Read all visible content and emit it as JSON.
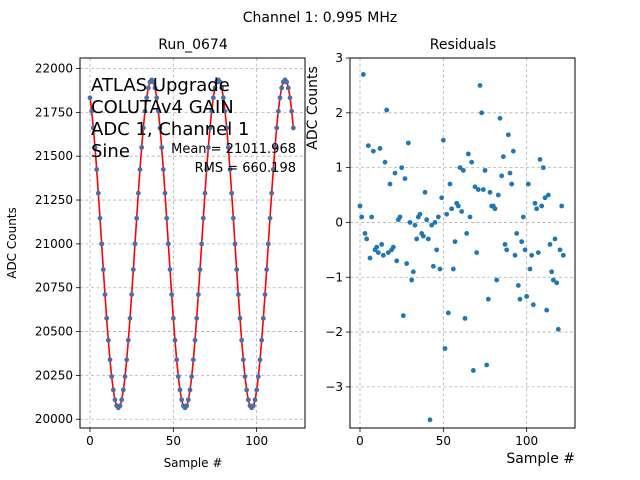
{
  "suptitle": "Channel 1: 0.995 MHz",
  "chart_data": [
    {
      "type": "scatter",
      "title": "Run_0674",
      "xlabel": "Sample #",
      "ylabel": "ADC Counts",
      "xlim": [
        -6,
        129
      ],
      "ylim": [
        19950,
        22060
      ],
      "xticks": [
        0,
        50,
        100
      ],
      "yticks": [
        20000,
        20250,
        20500,
        20750,
        21000,
        21250,
        21500,
        21750,
        22000
      ],
      "grid": true,
      "annotation_lines": [
        "ATLAS Upgrade",
        "COLUTAv4 GAIN",
        "ADC 1, Channel 1",
        "Sine"
      ],
      "stats": [
        "Mean = 21011.968",
        "RMS = 660.198"
      ],
      "fit": {
        "mean": 21000,
        "amplitude": 935,
        "period": 40.0,
        "peak_at": 37.0,
        "color": "#ff0000"
      },
      "points": {
        "x_start": 0,
        "x_end": 122,
        "color": "#4a6fa8"
      }
    },
    {
      "type": "scatter",
      "title": "Residuals",
      "xlabel": "Sample #",
      "ylabel": "ADC Counts",
      "xlim": [
        -6,
        129
      ],
      "ylim": [
        -3.75,
        3.0
      ],
      "xticks": [
        0,
        50,
        100
      ],
      "yticks": [
        -3,
        -2,
        -1,
        0,
        1,
        2,
        3
      ],
      "grid": true,
      "color": "#1f77b4",
      "x": [
        0,
        1,
        2,
        3,
        4,
        5,
        6,
        7,
        8,
        9,
        10,
        11,
        12,
        13,
        14,
        15,
        16,
        17,
        18,
        19,
        20,
        21,
        22,
        23,
        24,
        25,
        26,
        27,
        28,
        29,
        30,
        31,
        32,
        33,
        34,
        35,
        36,
        37,
        38,
        39,
        40,
        41,
        42,
        43,
        44,
        45,
        46,
        47,
        48,
        49,
        50,
        51,
        52,
        53,
        54,
        55,
        56,
        57,
        58,
        59,
        60,
        61,
        62,
        63,
        64,
        65,
        66,
        67,
        68,
        69,
        70,
        71,
        72,
        73,
        74,
        75,
        76,
        77,
        78,
        79,
        80,
        81,
        82,
        83,
        84,
        85,
        86,
        87,
        88,
        89,
        90,
        91,
        92,
        93,
        94,
        95,
        96,
        97,
        98,
        99,
        100,
        101,
        102,
        103,
        104,
        105,
        106,
        107,
        108,
        109,
        110,
        111,
        112,
        113,
        114,
        115,
        116,
        117,
        118,
        119,
        120,
        121,
        122
      ],
      "y": [
        0.3,
        0.1,
        2.7,
        -0.2,
        -0.3,
        1.4,
        -0.65,
        0.1,
        1.3,
        -0.5,
        -0.45,
        -0.55,
        1.35,
        -0.4,
        -0.6,
        1.1,
        2.05,
        -0.55,
        0.7,
        -0.5,
        -0.45,
        0.9,
        -0.7,
        0.05,
        0.1,
        1.0,
        -1.7,
        0.8,
        -0.75,
        1.45,
        0.0,
        -1.05,
        -0.9,
        -0.05,
        -0.3,
        0.1,
        0.15,
        -0.2,
        -0.25,
        0.55,
        0.05,
        -0.3,
        -3.6,
        -0.05,
        -0.8,
        0.0,
        -0.5,
        0.1,
        -0.85,
        0.45,
        1.5,
        -2.3,
        0.15,
        -1.65,
        0.7,
        0.25,
        -0.85,
        -0.35,
        0.35,
        0.3,
        1.0,
        0.2,
        0.95,
        -1.75,
        -0.2,
        1.25,
        0.1,
        1.1,
        -2.7,
        0.65,
        -0.55,
        0.6,
        2.5,
        2.0,
        0.6,
        0.95,
        -2.6,
        -1.4,
        0.55,
        0.3,
        0.3,
        0.25,
        -1.05,
        0.5,
        1.9,
        0.85,
        1.2,
        -0.4,
        -0.5,
        1.6,
        0.9,
        0.7,
        1.3,
        -0.6,
        -0.2,
        -1.15,
        -1.4,
        -0.35,
        0.1,
        -0.5,
        -1.35,
        0.7,
        -0.85,
        -0.6,
        -1.5,
        0.35,
        0.25,
        -0.55,
        1.15,
        0.3,
        1.0,
        0.45,
        -1.6,
        0.5,
        -0.4,
        -0.9,
        -1.05,
        -0.3,
        -1.1,
        -1.95,
        -0.5,
        0.3,
        -0.6
      ]
    }
  ]
}
